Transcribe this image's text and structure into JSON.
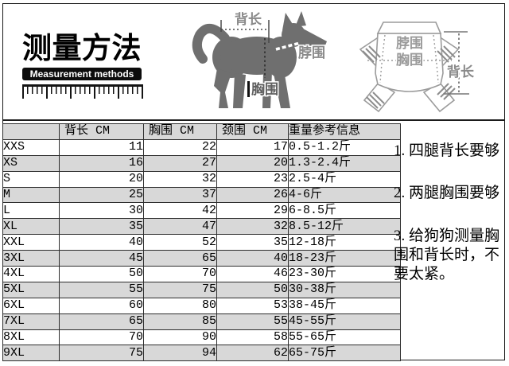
{
  "header_block": {
    "title_cn": "测量方法",
    "title_en": "Measurement methods"
  },
  "dog_diagram": {
    "back_length_label": "背长",
    "neck_girth_label": "脖围",
    "chest_girth_label": "胸围"
  },
  "garment_diagram": {
    "neck_girth_label": "脖围",
    "chest_girth_label": "胸围",
    "back_length_label": "背长"
  },
  "size_table": {
    "columns": [
      "",
      "背长 CM",
      "胸围 CM",
      "颈围 CM",
      "重量参考信息"
    ],
    "rows": [
      [
        "XXS",
        "11",
        "22",
        "17",
        "0.5-1.2斤"
      ],
      [
        "XS",
        "16",
        "27",
        "20",
        "1.3-2.4斤"
      ],
      [
        "S",
        "20",
        "32",
        "23",
        "2.5-4斤"
      ],
      [
        "M",
        "25",
        "37",
        "26",
        "4-6斤"
      ],
      [
        "L",
        "30",
        "42",
        "29",
        "6-8.5斤"
      ],
      [
        "XL",
        "35",
        "47",
        "32",
        "8.5-12斤"
      ],
      [
        "XXL",
        "40",
        "52",
        "35",
        "12-18斤"
      ],
      [
        "3XL",
        "45",
        "65",
        "40",
        "18-23斤"
      ],
      [
        "4XL",
        "50",
        "70",
        "46",
        "23-30斤"
      ],
      [
        "5XL",
        "55",
        "75",
        "50",
        "30-38斤"
      ],
      [
        "6XL",
        "60",
        "80",
        "53",
        "38-45斤"
      ],
      [
        "7XL",
        "65",
        "85",
        "55",
        "45-55斤"
      ],
      [
        "8XL",
        "70",
        "90",
        "58",
        "55-65斤"
      ],
      [
        "9XL",
        "75",
        "94",
        "62",
        "65-75斤"
      ]
    ]
  },
  "notes": {
    "items": [
      "1. 四腿背长要够",
      "2. 两腿胸围要够",
      "3. 给狗狗测量胸围和背长时，不要太紧。"
    ]
  },
  "colors": {
    "row_alt_gray": "#d8d8d8",
    "grid_line": "#2e2e2e",
    "dog_silhouette_gray": "#6f6f6f",
    "diagram_label_gray": "#8a8a8a",
    "garment_outline_gray": "#9b9b9b",
    "title_bar_black": "#0c0c0c"
  }
}
